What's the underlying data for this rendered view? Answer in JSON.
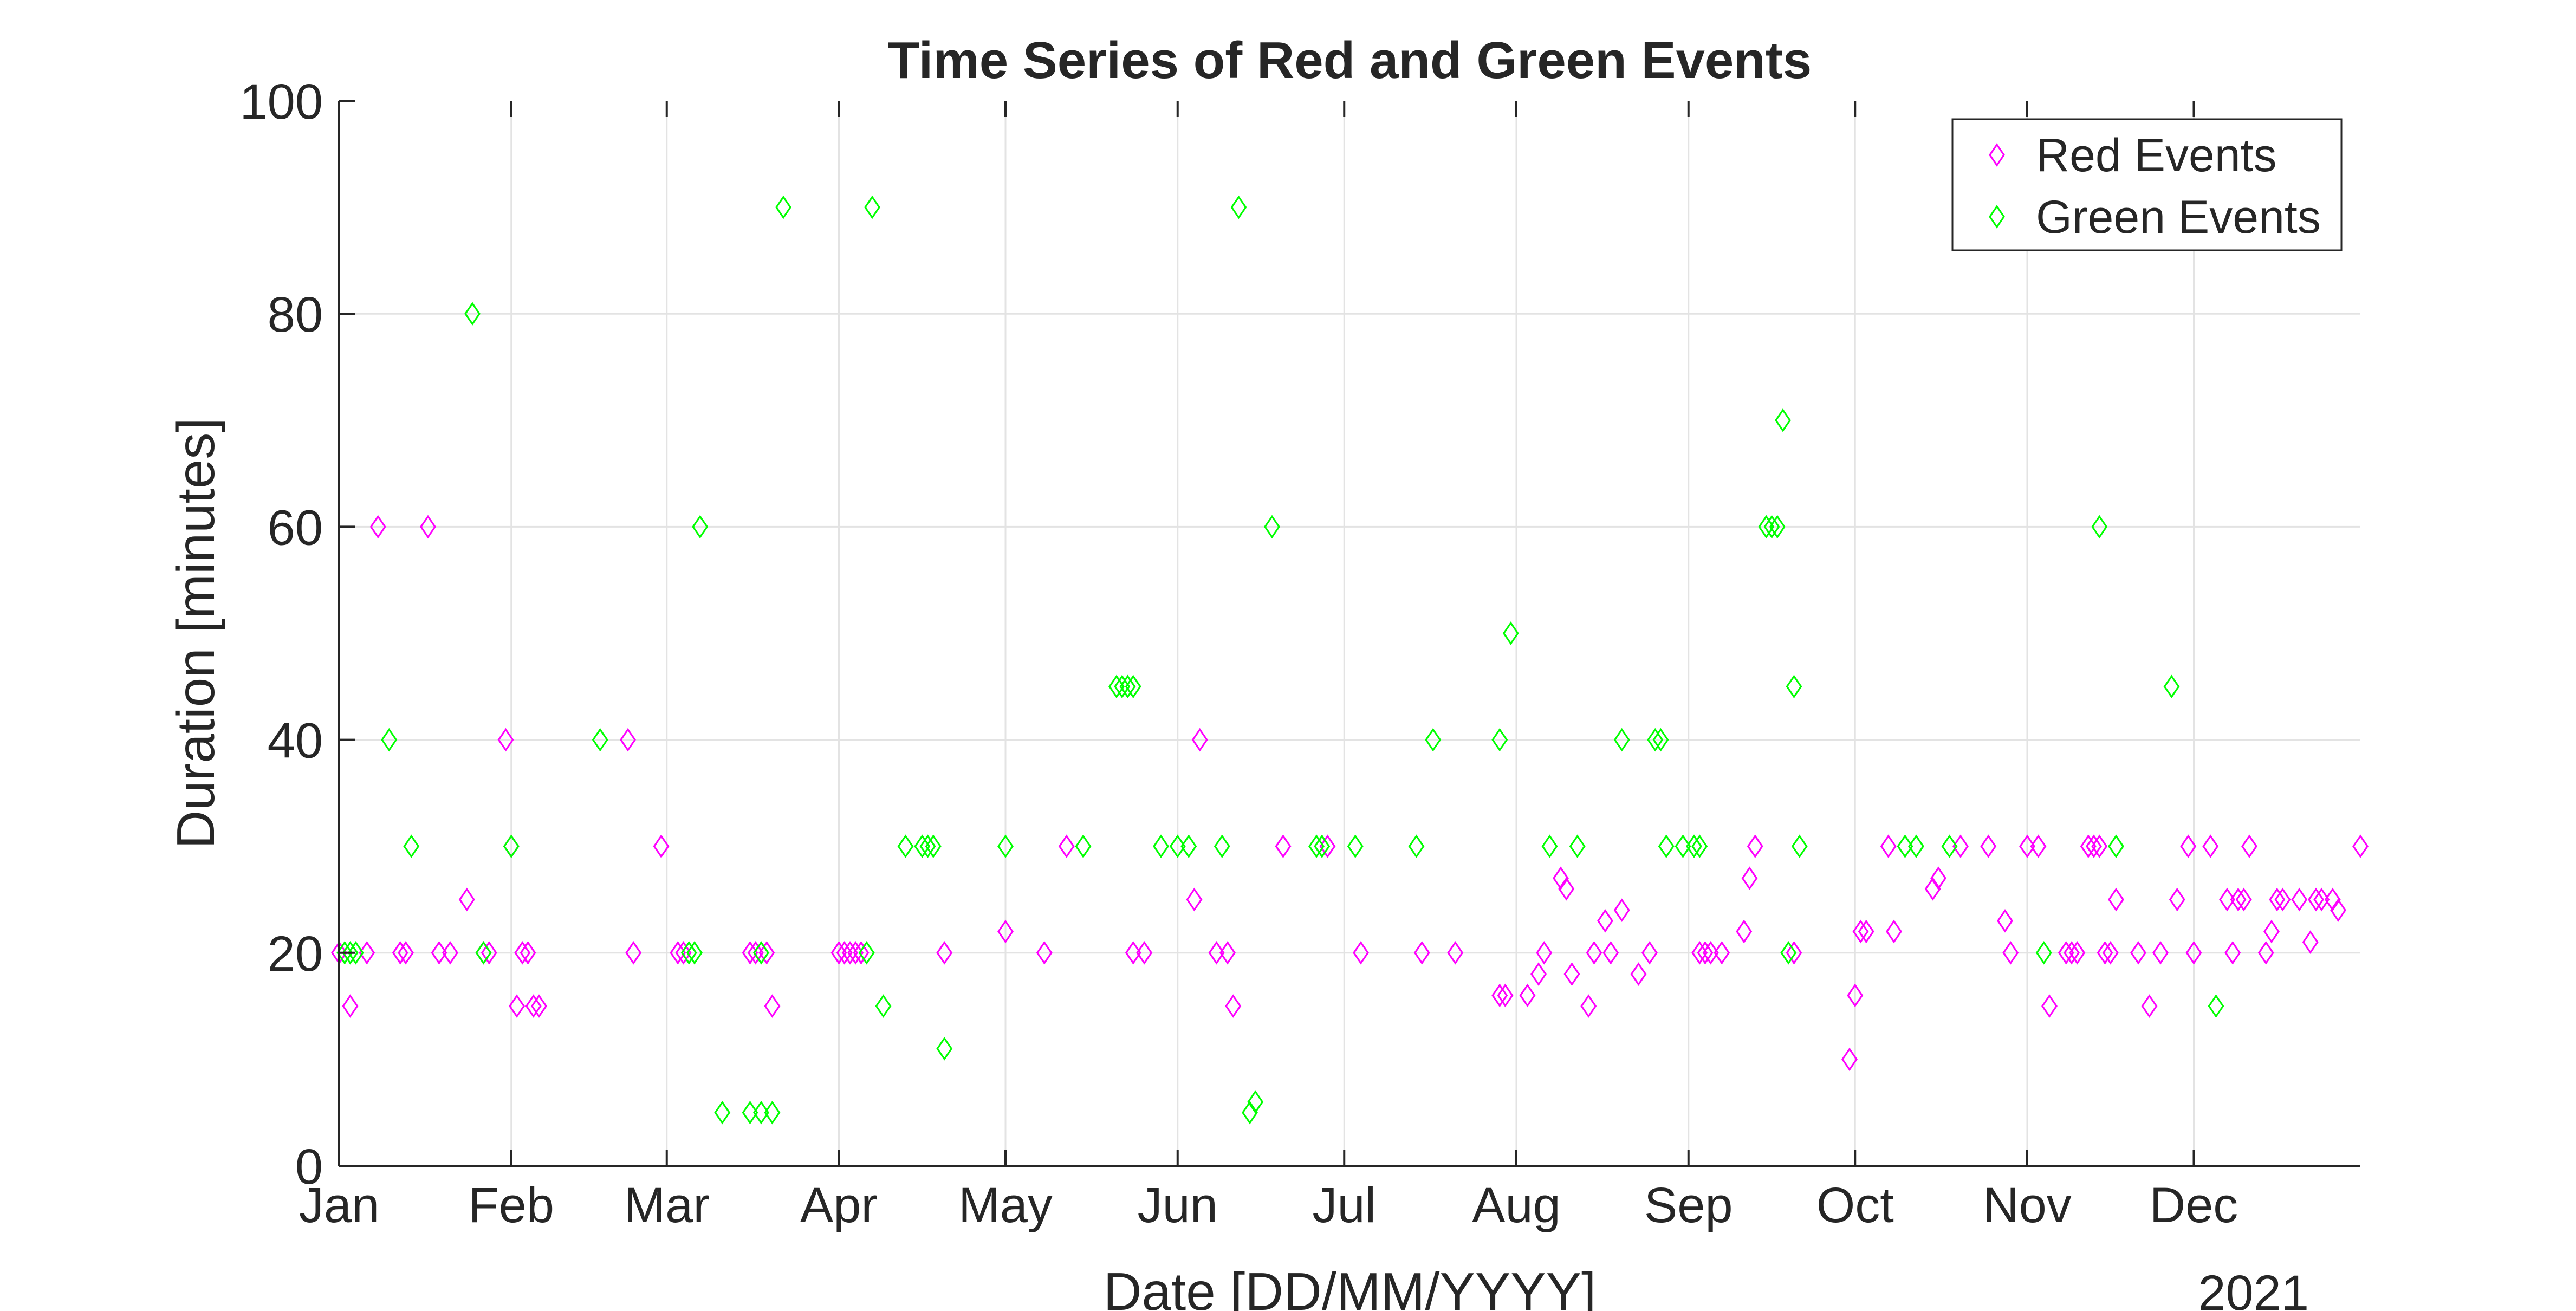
{
  "chart_data": {
    "type": "scatter",
    "title": "Time Series of Red and Green Events",
    "xlabel": "Date [DD/MM/YYYY]",
    "ylabel": "Duration [minutes]",
    "year_label": "2021",
    "x_ticks": [
      "Jan",
      "Feb",
      "Mar",
      "Apr",
      "May",
      "Jun",
      "Jul",
      "Aug",
      "Sep",
      "Oct",
      "Nov",
      "Dec"
    ],
    "xlim": [
      "2021-01-01",
      "2021-12-31"
    ],
    "y_ticks": [
      "0",
      "20",
      "40",
      "60",
      "80",
      "100"
    ],
    "ylim": [
      0,
      100
    ],
    "grid": true,
    "legend_position": "top-right",
    "marker": "diamond",
    "series": [
      {
        "name": "Red Events",
        "color": "#ff00ff",
        "points": [
          [
            "2021-01-01",
            20
          ],
          [
            "2021-01-03",
            15
          ],
          [
            "2021-01-06",
            20
          ],
          [
            "2021-01-08",
            60
          ],
          [
            "2021-01-12",
            20
          ],
          [
            "2021-01-13",
            20
          ],
          [
            "2021-01-17",
            60
          ],
          [
            "2021-01-19",
            20
          ],
          [
            "2021-01-21",
            20
          ],
          [
            "2021-01-24",
            25
          ],
          [
            "2021-01-27",
            20
          ],
          [
            "2021-01-28",
            20
          ],
          [
            "2021-01-31",
            40
          ],
          [
            "2021-02-01",
            30
          ],
          [
            "2021-02-02",
            15
          ],
          [
            "2021-02-03",
            20
          ],
          [
            "2021-02-04",
            20
          ],
          [
            "2021-02-05",
            15
          ],
          [
            "2021-02-06",
            15
          ],
          [
            "2021-02-22",
            40
          ],
          [
            "2021-02-23",
            20
          ],
          [
            "2021-02-28",
            30
          ],
          [
            "2021-03-03",
            20
          ],
          [
            "2021-03-04",
            20
          ],
          [
            "2021-03-16",
            20
          ],
          [
            "2021-03-17",
            20
          ],
          [
            "2021-03-19",
            20
          ],
          [
            "2021-03-20",
            15
          ],
          [
            "2021-04-01",
            20
          ],
          [
            "2021-04-02",
            20
          ],
          [
            "2021-04-03",
            20
          ],
          [
            "2021-04-04",
            20
          ],
          [
            "2021-04-05",
            20
          ],
          [
            "2021-04-20",
            20
          ],
          [
            "2021-05-01",
            22
          ],
          [
            "2021-05-08",
            20
          ],
          [
            "2021-05-12",
            30
          ],
          [
            "2021-05-24",
            20
          ],
          [
            "2021-05-26",
            20
          ],
          [
            "2021-06-04",
            25
          ],
          [
            "2021-06-05",
            40
          ],
          [
            "2021-06-08",
            20
          ],
          [
            "2021-06-10",
            20
          ],
          [
            "2021-06-11",
            15
          ],
          [
            "2021-06-20",
            30
          ],
          [
            "2021-06-28",
            30
          ],
          [
            "2021-07-04",
            20
          ],
          [
            "2021-07-15",
            20
          ],
          [
            "2021-07-21",
            20
          ],
          [
            "2021-07-29",
            16
          ],
          [
            "2021-07-30",
            16
          ],
          [
            "2021-08-03",
            16
          ],
          [
            "2021-08-05",
            18
          ],
          [
            "2021-08-06",
            20
          ],
          [
            "2021-08-09",
            27
          ],
          [
            "2021-08-10",
            26
          ],
          [
            "2021-08-11",
            18
          ],
          [
            "2021-08-14",
            15
          ],
          [
            "2021-08-15",
            20
          ],
          [
            "2021-08-17",
            23
          ],
          [
            "2021-08-18",
            20
          ],
          [
            "2021-08-20",
            24
          ],
          [
            "2021-08-23",
            18
          ],
          [
            "2021-08-25",
            20
          ],
          [
            "2021-09-03",
            20
          ],
          [
            "2021-09-04",
            20
          ],
          [
            "2021-09-05",
            20
          ],
          [
            "2021-09-07",
            20
          ],
          [
            "2021-09-11",
            22
          ],
          [
            "2021-09-12",
            27
          ],
          [
            "2021-09-13",
            30
          ],
          [
            "2021-09-20",
            20
          ],
          [
            "2021-09-30",
            10
          ],
          [
            "2021-10-01",
            16
          ],
          [
            "2021-10-02",
            22
          ],
          [
            "2021-10-03",
            22
          ],
          [
            "2021-10-07",
            30
          ],
          [
            "2021-10-08",
            22
          ],
          [
            "2021-10-15",
            26
          ],
          [
            "2021-10-16",
            27
          ],
          [
            "2021-10-20",
            30
          ],
          [
            "2021-10-25",
            30
          ],
          [
            "2021-10-28",
            23
          ],
          [
            "2021-10-29",
            20
          ],
          [
            "2021-11-01",
            30
          ],
          [
            "2021-11-03",
            30
          ],
          [
            "2021-11-05",
            15
          ],
          [
            "2021-11-08",
            20
          ],
          [
            "2021-11-09",
            20
          ],
          [
            "2021-11-10",
            20
          ],
          [
            "2021-11-12",
            30
          ],
          [
            "2021-11-13",
            30
          ],
          [
            "2021-11-14",
            30
          ],
          [
            "2021-11-15",
            20
          ],
          [
            "2021-11-16",
            20
          ],
          [
            "2021-11-17",
            25
          ],
          [
            "2021-11-21",
            20
          ],
          [
            "2021-11-23",
            15
          ],
          [
            "2021-11-25",
            20
          ],
          [
            "2021-11-28",
            25
          ],
          [
            "2021-11-30",
            30
          ],
          [
            "2021-12-01",
            20
          ],
          [
            "2021-12-04",
            30
          ],
          [
            "2021-12-07",
            25
          ],
          [
            "2021-12-08",
            20
          ],
          [
            "2021-12-09",
            25
          ],
          [
            "2021-12-10",
            25
          ],
          [
            "2021-12-11",
            30
          ],
          [
            "2021-12-14",
            20
          ],
          [
            "2021-12-15",
            22
          ],
          [
            "2021-12-16",
            25
          ],
          [
            "2021-12-17",
            25
          ],
          [
            "2021-12-20",
            25
          ],
          [
            "2021-12-22",
            21
          ],
          [
            "2021-12-23",
            25
          ],
          [
            "2021-12-24",
            25
          ],
          [
            "2021-12-26",
            25
          ],
          [
            "2021-12-27",
            24
          ],
          [
            "2021-12-31",
            30
          ]
        ]
      },
      {
        "name": "Green Events",
        "color": "#00ff00",
        "points": [
          [
            "2021-01-02",
            20
          ],
          [
            "2021-01-03",
            20
          ],
          [
            "2021-01-04",
            20
          ],
          [
            "2021-01-10",
            40
          ],
          [
            "2021-01-14",
            30
          ],
          [
            "2021-01-25",
            80
          ],
          [
            "2021-01-27",
            20
          ],
          [
            "2021-02-01",
            30
          ],
          [
            "2021-02-17",
            40
          ],
          [
            "2021-03-05",
            20
          ],
          [
            "2021-03-06",
            20
          ],
          [
            "2021-03-07",
            60
          ],
          [
            "2021-03-11",
            5
          ],
          [
            "2021-03-16",
            5
          ],
          [
            "2021-03-18",
            5
          ],
          [
            "2021-03-18",
            20
          ],
          [
            "2021-03-20",
            5
          ],
          [
            "2021-03-22",
            90
          ],
          [
            "2021-04-06",
            20
          ],
          [
            "2021-04-07",
            90
          ],
          [
            "2021-04-09",
            15
          ],
          [
            "2021-04-13",
            30
          ],
          [
            "2021-04-16",
            30
          ],
          [
            "2021-04-17",
            30
          ],
          [
            "2021-04-18",
            30
          ],
          [
            "2021-04-20",
            11
          ],
          [
            "2021-05-01",
            30
          ],
          [
            "2021-05-15",
            30
          ],
          [
            "2021-05-21",
            45
          ],
          [
            "2021-05-22",
            45
          ],
          [
            "2021-05-23",
            45
          ],
          [
            "2021-05-24",
            45
          ],
          [
            "2021-05-29",
            30
          ],
          [
            "2021-06-01",
            30
          ],
          [
            "2021-06-03",
            30
          ],
          [
            "2021-06-09",
            30
          ],
          [
            "2021-06-12",
            90
          ],
          [
            "2021-06-14",
            5
          ],
          [
            "2021-06-15",
            6
          ],
          [
            "2021-06-18",
            60
          ],
          [
            "2021-06-26",
            30
          ],
          [
            "2021-06-27",
            30
          ],
          [
            "2021-07-03",
            30
          ],
          [
            "2021-07-14",
            30
          ],
          [
            "2021-07-17",
            40
          ],
          [
            "2021-07-29",
            40
          ],
          [
            "2021-07-31",
            50
          ],
          [
            "2021-08-07",
            30
          ],
          [
            "2021-08-12",
            30
          ],
          [
            "2021-08-20",
            40
          ],
          [
            "2021-08-26",
            40
          ],
          [
            "2021-08-27",
            40
          ],
          [
            "2021-08-28",
            30
          ],
          [
            "2021-08-31",
            30
          ],
          [
            "2021-09-02",
            30
          ],
          [
            "2021-09-03",
            30
          ],
          [
            "2021-09-15",
            60
          ],
          [
            "2021-09-16",
            60
          ],
          [
            "2021-09-17",
            60
          ],
          [
            "2021-09-18",
            70
          ],
          [
            "2021-09-19",
            20
          ],
          [
            "2021-09-20",
            45
          ],
          [
            "2021-09-21",
            30
          ],
          [
            "2021-10-10",
            30
          ],
          [
            "2021-10-12",
            30
          ],
          [
            "2021-10-18",
            30
          ],
          [
            "2021-11-04",
            20
          ],
          [
            "2021-11-14",
            60
          ],
          [
            "2021-11-17",
            30
          ],
          [
            "2021-11-27",
            45
          ],
          [
            "2021-12-05",
            15
          ]
        ]
      }
    ]
  }
}
